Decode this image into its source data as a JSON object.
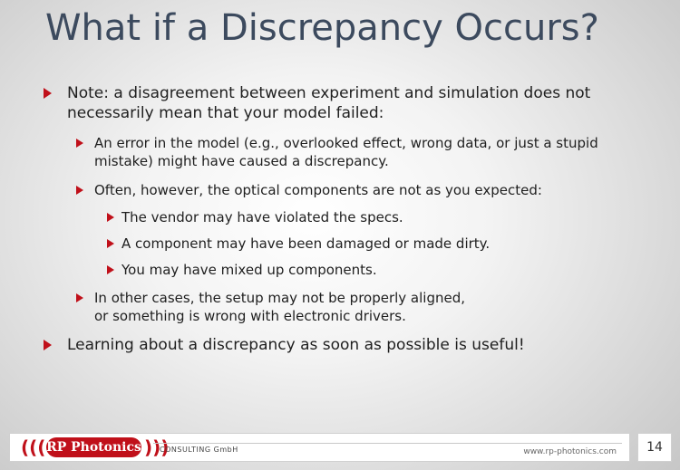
{
  "slide": {
    "title": "What if a Discrepancy Occurs?",
    "bullets": [
      {
        "text": "Note: a disagreement between experiment and simulation does not necessarily mean that your model failed:"
      },
      {
        "text": "An error in the model (e.g., overlooked effect, wrong data, or just a stupid mistake) might have caused a discrepancy."
      },
      {
        "text": "Often, however, the optical components are not as you expected:"
      },
      {
        "text": "The vendor may have violated the specs."
      },
      {
        "text": "A component may have been damaged or made dirty."
      },
      {
        "text": "You may have mixed up components."
      },
      {
        "text": "In other cases, the setup may not be properly aligned, or something is wrong with electronic drivers."
      },
      {
        "text": "Learning about a discrepancy as soon as possible is useful!"
      }
    ]
  },
  "footer": {
    "logo_text": "RP Photonics",
    "consulting": "CONSULTING GmbH",
    "url": "www.rp-photonics.com",
    "page_number": "14"
  },
  "colors": {
    "title": "#3c4a5e",
    "bullet_marker": "#c0101a",
    "brand_red": "#c0101a"
  }
}
